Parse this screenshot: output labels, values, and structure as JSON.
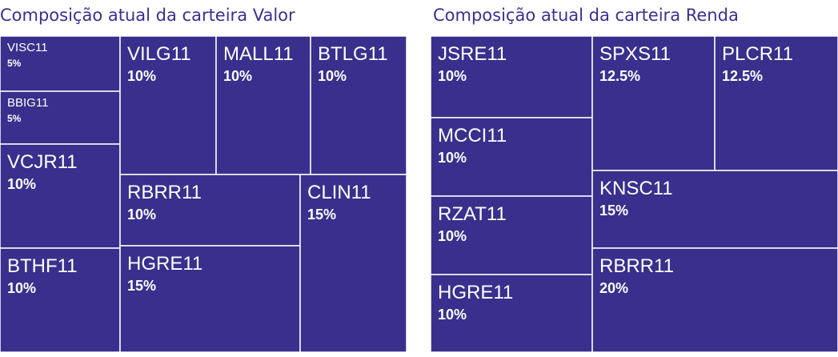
{
  "chart_data": [
    {
      "type": "treemap",
      "title": "Composição atual da carteira Valor",
      "color": "#38308c",
      "categories": [
        "VISC11",
        "BBIG11",
        "VCJR11",
        "BTHF11",
        "VILG11",
        "MALL11",
        "BTLG11",
        "RBRR11",
        "HGRE11",
        "CLIN11"
      ],
      "values": [
        5,
        5,
        10,
        10,
        10,
        10,
        10,
        10,
        15,
        15
      ],
      "value_labels": [
        "5%",
        "5%",
        "10%",
        "10%",
        "10%",
        "10%",
        "10%",
        "10%",
        "15%",
        "15%"
      ]
    },
    {
      "type": "treemap",
      "title": "Composição atual da carteira Renda",
      "color": "#38308c",
      "categories": [
        "JSRE11",
        "MCCI11",
        "RZAT11",
        "HGRE11",
        "SPXS11",
        "PLCR11",
        "KNSC11",
        "RBRR11"
      ],
      "values": [
        10,
        10,
        10,
        10,
        12.5,
        12.5,
        15,
        20
      ],
      "value_labels": [
        "10%",
        "10%",
        "10%",
        "10%",
        "12.5%",
        "12.5%",
        "15%",
        "20%"
      ]
    }
  ]
}
